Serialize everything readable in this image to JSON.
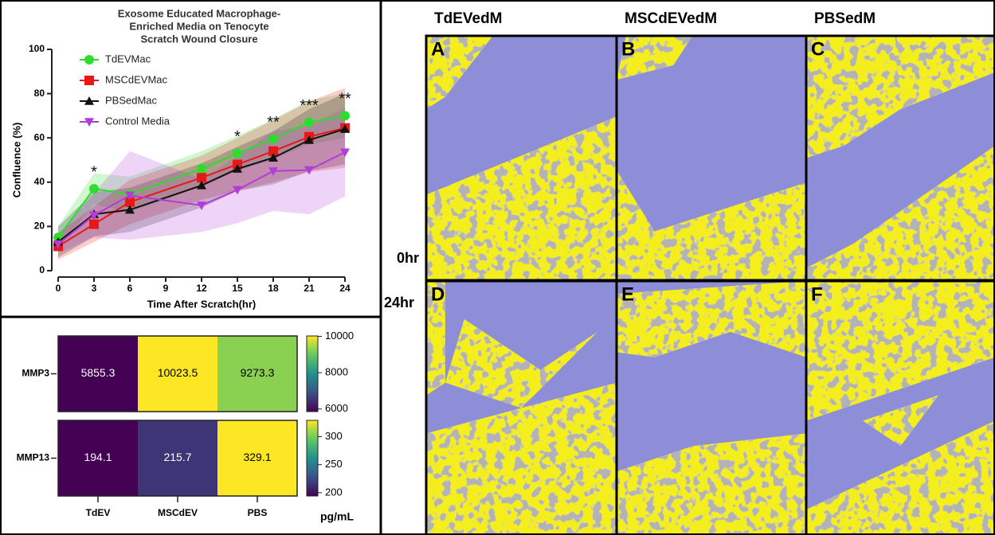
{
  "chart_data": [
    {
      "type": "line",
      "title": [
        "Exosome Educated Macrophage-",
        "Enriched  Media on Tenocyte",
        "Scratch Wound Closure"
      ],
      "x_label": "Time After Scratch(hr)",
      "y_label": "Confluence (%)",
      "x": [
        0,
        3,
        6,
        12,
        15,
        18,
        21,
        24
      ],
      "xlim": [
        0,
        24
      ],
      "xticks": [
        0,
        3,
        6,
        9,
        12,
        15,
        18,
        21,
        24
      ],
      "ylim": [
        0,
        100
      ],
      "yticks": [
        0,
        20,
        40,
        60,
        80,
        100
      ],
      "legend": "upper-left",
      "series": [
        {
          "name": "TdEVMac",
          "color": "#2ddc2d",
          "marker": "circle",
          "values": [
            15,
            37,
            34.5,
            46,
            53,
            59.5,
            67,
            70
          ],
          "errors": [
            5,
            7,
            8,
            8,
            8,
            9,
            10,
            10
          ]
        },
        {
          "name": "MSCdEVMac",
          "color": "#e81818",
          "marker": "square",
          "values": [
            11,
            21,
            31,
            42,
            48,
            54,
            60.5,
            64.5
          ],
          "errors": [
            6,
            8,
            10,
            10,
            12,
            14,
            16,
            18
          ]
        },
        {
          "name": "PBSedMac",
          "color": "#111111",
          "marker": "triangle-up",
          "values": [
            13,
            25.5,
            27.5,
            38.5,
            46,
            51,
            59,
            64
          ],
          "errors": [
            7,
            10,
            10,
            10,
            10,
            12,
            14,
            16
          ]
        },
        {
          "name": "Control Media",
          "color": "#b23cd8",
          "marker": "triangle-down",
          "values": [
            12,
            25,
            34,
            29.5,
            36.5,
            45,
            45.5,
            53.5
          ],
          "errors": [
            4,
            10,
            20,
            12,
            15,
            18,
            20,
            20
          ]
        }
      ],
      "annotations": [
        {
          "x": 3,
          "text": "*"
        },
        {
          "x": 15,
          "text": "*"
        },
        {
          "x": 18,
          "text": "**"
        },
        {
          "x": 21,
          "text": "***"
        },
        {
          "x": 24,
          "text": "**"
        }
      ]
    },
    {
      "type": "heatmap",
      "columns": [
        "TdEV",
        "MSCdEV",
        "PBS"
      ],
      "rows": [
        "MMP3",
        "MMP13"
      ],
      "values": [
        [
          5855.3,
          10023.5,
          9273.3
        ],
        [
          194.1,
          215.7,
          329.1
        ]
      ],
      "colorbar_label": "pg/mL",
      "colorbars": [
        {
          "zlim": [
            5855.3,
            10023.5
          ],
          "ticks": [
            6000,
            8000,
            10000
          ]
        },
        {
          "zlim": [
            194.1,
            329.1
          ],
          "ticks": [
            200,
            250,
            300
          ]
        }
      ]
    }
  ],
  "image_grid": {
    "columns": [
      "TdEVedM",
      "MSCdEVedM",
      "PBSedM"
    ],
    "rows": [
      "0hr",
      "24hr"
    ],
    "panels": [
      [
        "A",
        "B",
        "C"
      ],
      [
        "D",
        "E",
        "F"
      ]
    ]
  }
}
